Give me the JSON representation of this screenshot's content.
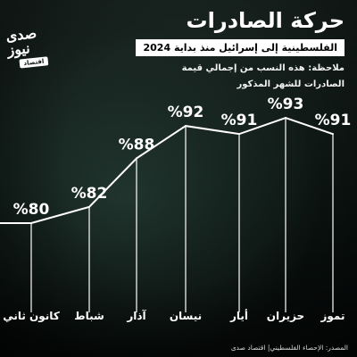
{
  "header": {
    "title": "حركة الصادرات",
    "subtitle": "الفلسطينية إلى إسرائيل منذ بداية 2024",
    "note": "ملاحظة: هذه النسب من إجمالي قيمة الصادرات للشهر المذكور"
  },
  "logo": {
    "script_text": "صدى نيوز",
    "tag_text": "اقتصاد"
  },
  "source": "المصدر: الإحصاء الفلسطيني| اقتصاد صدى",
  "colors": {
    "background": "#0f1a16",
    "line": "#ffffff",
    "text": "#ffffff"
  },
  "chart_data": {
    "type": "line",
    "categories": [
      "كانون ثاني",
      "شباط",
      "آذار",
      "نيسان",
      "أيار",
      "حزيران",
      "تموز"
    ],
    "values": [
      80,
      82,
      88,
      92,
      91,
      93,
      91
    ],
    "data_labels": [
      "%80",
      "%82",
      "%88",
      "%92",
      "%91",
      "%93",
      "%91"
    ],
    "title": "حركة الصادرات",
    "subtitle": "الفلسطينية إلى إسرائيل منذ بداية 2024",
    "xlabel": "",
    "ylabel": "",
    "unit": "%",
    "grid": false,
    "legend": "none"
  }
}
